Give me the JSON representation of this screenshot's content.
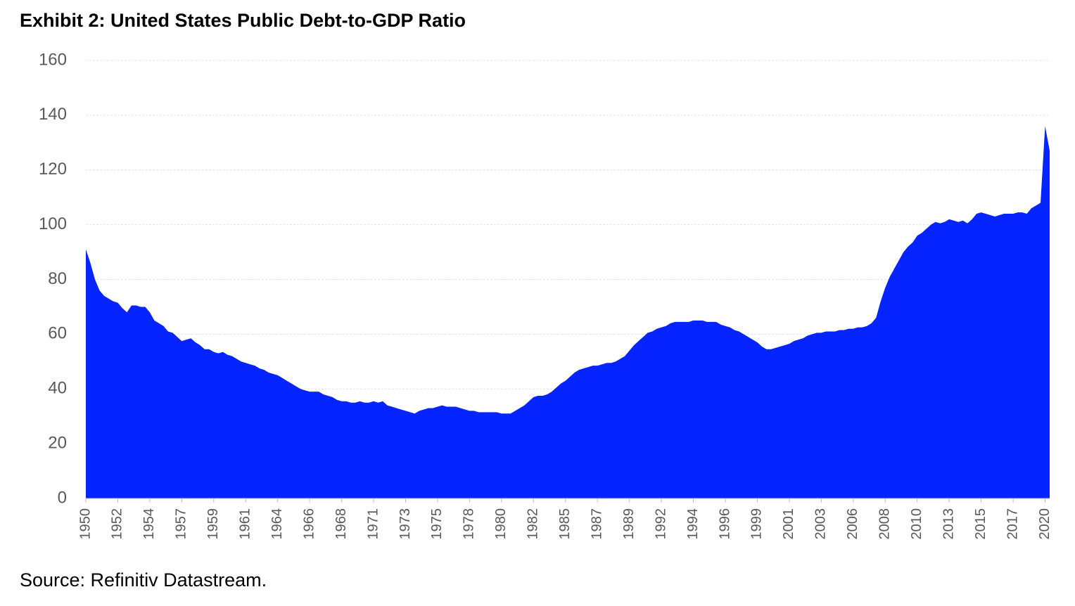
{
  "chart_data": {
    "type": "area",
    "title": "Exhibit 2: United States Public Debt-to-GDP Ratio",
    "source": "Source: Refinitiv Datastream.",
    "color": "#0524ff",
    "grid": true,
    "ylim": [
      0,
      160
    ],
    "yticks": [
      0,
      20,
      40,
      60,
      80,
      100,
      120,
      140,
      160
    ],
    "categories": [
      "1950",
      null,
      null,
      null,
      null,
      null,
      null,
      "1952",
      null,
      null,
      null,
      null,
      null,
      null,
      "1954",
      null,
      null,
      null,
      null,
      null,
      null,
      "1957",
      null,
      null,
      null,
      null,
      null,
      null,
      "1959",
      null,
      null,
      null,
      null,
      null,
      null,
      "1961",
      null,
      null,
      null,
      null,
      null,
      null,
      "1964",
      null,
      null,
      null,
      null,
      null,
      null,
      "1966",
      null,
      null,
      null,
      null,
      null,
      null,
      "1968",
      null,
      null,
      null,
      null,
      null,
      null,
      "1971",
      null,
      null,
      null,
      null,
      null,
      null,
      "1973",
      null,
      null,
      null,
      null,
      null,
      null,
      "1975",
      null,
      null,
      null,
      null,
      null,
      null,
      "1978",
      null,
      null,
      null,
      null,
      null,
      null,
      "1980",
      null,
      null,
      null,
      null,
      null,
      null,
      "1982",
      null,
      null,
      null,
      null,
      null,
      null,
      "1985",
      null,
      null,
      null,
      null,
      null,
      null,
      "1987",
      null,
      null,
      null,
      null,
      null,
      null,
      "1989",
      null,
      null,
      null,
      null,
      null,
      null,
      "1992",
      null,
      null,
      null,
      null,
      null,
      null,
      "1994",
      null,
      null,
      null,
      null,
      null,
      null,
      "1996",
      null,
      null,
      null,
      null,
      null,
      null,
      "1999",
      null,
      null,
      null,
      null,
      null,
      null,
      "2001",
      null,
      null,
      null,
      null,
      null,
      null,
      "2003",
      null,
      null,
      null,
      null,
      null,
      null,
      "2006",
      null,
      null,
      null,
      null,
      null,
      null,
      "2008",
      null,
      null,
      null,
      null,
      null,
      null,
      "2010",
      null,
      null,
      null,
      null,
      null,
      null,
      "2013",
      null,
      null,
      null,
      null,
      null,
      null,
      "2015",
      null,
      null,
      null,
      null,
      null,
      null,
      "2017",
      null,
      null,
      null,
      null,
      null,
      null,
      "2020",
      null
    ],
    "values": [
      91,
      86,
      80,
      76,
      74,
      73,
      72,
      71.5,
      69.5,
      68,
      70.5,
      70.5,
      70,
      70,
      68,
      65,
      64,
      63,
      61,
      60.5,
      59,
      57.5,
      58,
      58.5,
      57,
      56,
      54.5,
      54.5,
      53.5,
      53,
      53.5,
      52.5,
      52,
      51,
      50,
      49.5,
      49,
      48.5,
      47.5,
      47,
      46,
      45.5,
      45,
      44,
      43,
      42,
      41,
      40,
      39.5,
      39,
      39,
      39,
      38,
      37.5,
      37,
      36,
      35.5,
      35.5,
      35,
      35,
      35.5,
      35,
      35,
      35.5,
      35,
      35.5,
      34,
      33.5,
      33,
      32.5,
      32,
      31.5,
      31,
      32,
      32.5,
      33,
      33,
      33.5,
      34,
      33.5,
      33.5,
      33.5,
      33,
      32.5,
      32,
      32,
      31.5,
      31.5,
      31.5,
      31.5,
      31.5,
      31,
      31,
      31,
      32,
      33,
      34,
      35.5,
      37,
      37.5,
      37.5,
      38,
      39,
      40.5,
      42,
      43,
      44.5,
      46,
      47,
      47.5,
      48,
      48.5,
      48.5,
      49,
      49.5,
      49.5,
      50,
      51,
      52,
      54,
      56,
      57.5,
      59,
      60.5,
      61,
      62,
      62.5,
      63,
      64,
      64.5,
      64.5,
      64.5,
      64.5,
      65,
      65,
      65,
      64.5,
      64.5,
      64.5,
      63.5,
      63,
      62.5,
      61.5,
      61,
      60,
      59,
      58,
      57,
      55.5,
      54.5,
      54.5,
      55,
      55.5,
      56,
      56.5,
      57.5,
      58,
      58.5,
      59.5,
      60,
      60.5,
      60.5,
      61,
      61,
      61,
      61.5,
      61.5,
      62,
      62,
      62.5,
      62.5,
      63,
      64,
      66,
      72,
      77,
      81,
      84,
      87,
      90,
      92,
      93.5,
      96,
      97,
      98.5,
      100,
      101,
      100.5,
      101,
      102,
      101.5,
      101,
      101.5,
      100.5,
      102,
      104,
      104.5,
      104,
      103.5,
      103,
      103.5,
      104,
      104,
      104,
      104.5,
      104.5,
      104,
      106,
      107,
      108,
      136,
      127
    ]
  }
}
